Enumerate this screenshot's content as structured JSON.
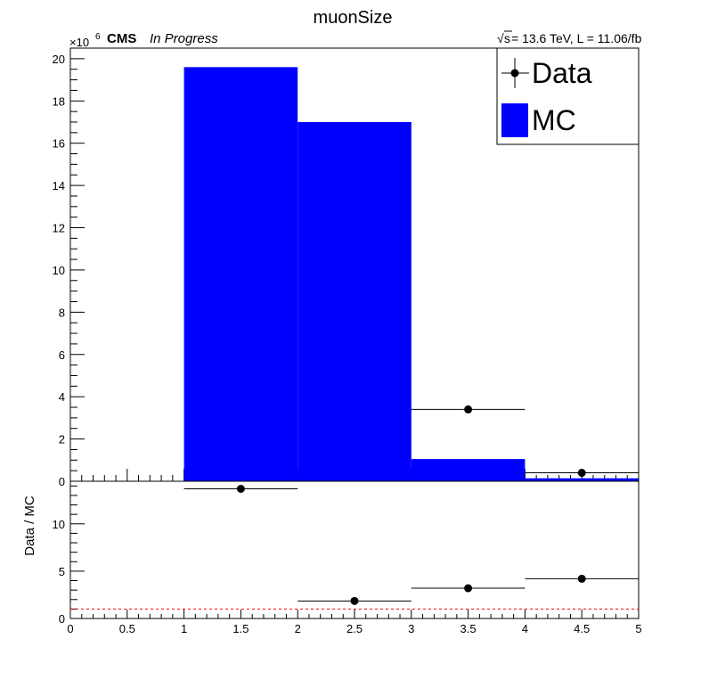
{
  "chart_data": [
    {
      "type": "bar",
      "title": "muonSize",
      "x_edges": [
        1,
        2,
        3,
        4,
        5
      ],
      "series": [
        {
          "name": "MC",
          "x": [
            1.5,
            2.5,
            3.5,
            4.5
          ],
          "values": [
            19.6,
            17.0,
            1.05,
            0.14
          ],
          "color": "#0000ff"
        },
        {
          "name": "Data",
          "x": [
            1.5,
            2.5,
            3.5,
            4.5
          ],
          "values": [
            null,
            null,
            3.4,
            0.4
          ],
          "xerr": [
            0.5,
            0.5,
            0.5,
            0.5
          ],
          "color": "#000000"
        }
      ],
      "xlim": [
        0,
        5
      ],
      "ylim": [
        0,
        20.5
      ],
      "yscale_label": "×10",
      "yscale_exp": "6",
      "x_ticks": [
        "0",
        "0.5",
        "1",
        "1.5",
        "2",
        "2.5",
        "3",
        "3.5",
        "4",
        "4.5",
        "5"
      ],
      "y_ticks": [
        "0",
        "2",
        "4",
        "6",
        "8",
        "10",
        "12",
        "14",
        "16",
        "18",
        "20"
      ],
      "legend": [
        "Data",
        "MC"
      ],
      "legend_position": "top-right",
      "annotations": {
        "experiment": "CMS",
        "status": "In Progress",
        "sqrt_symbol": "√",
        "sqrt_s": "s",
        "lumi_text": " = 13.6 TeV, L = 11.06/fb"
      }
    },
    {
      "type": "scatter",
      "ylabel": "Data / MC",
      "x": [
        1.5,
        2.5,
        3.5,
        4.5
      ],
      "values": [
        13.7,
        1.85,
        3.2,
        4.2
      ],
      "xerr": [
        0.5,
        0.5,
        0.5,
        0.5
      ],
      "reference_line": 1,
      "reference_line_color": "#ff0000",
      "xlim": [
        0,
        5
      ],
      "ylim": [
        0,
        14.5
      ],
      "x_ticks": [
        "0",
        "0.5",
        "1",
        "1.5",
        "2",
        "2.5",
        "3",
        "3.5",
        "4",
        "4.5",
        "5"
      ],
      "y_ticks": [
        "0",
        "5",
        "10"
      ]
    }
  ]
}
